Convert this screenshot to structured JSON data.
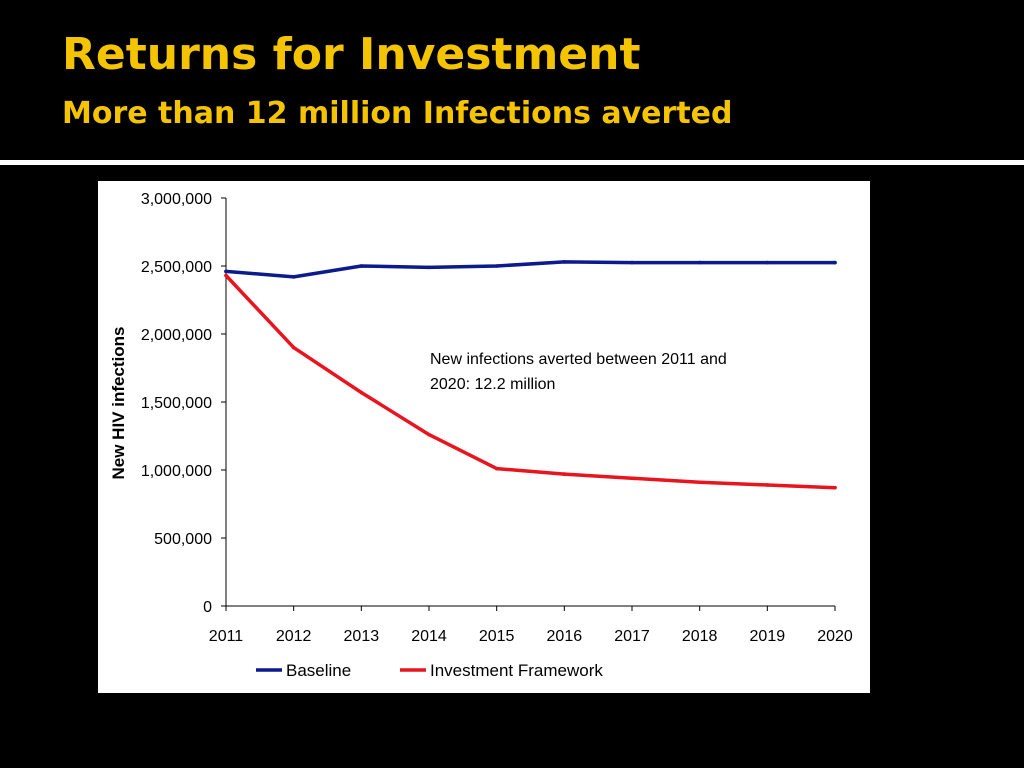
{
  "slide": {
    "title": "Returns for Investment",
    "subtitle": "More than 12 million Infections averted"
  },
  "colors": {
    "title": "#f5c400",
    "background": "#000000",
    "baseline": "#0b1a8c",
    "investment": "#e8141e"
  },
  "chart_data": {
    "type": "line",
    "x": [
      2011,
      2012,
      2013,
      2014,
      2015,
      2016,
      2017,
      2018,
      2019,
      2020
    ],
    "xlabel": "",
    "ylabel": "New HIV infections",
    "ylim": [
      0,
      3000000
    ],
    "yticks": [
      0,
      500000,
      1000000,
      1500000,
      2000000,
      2500000,
      3000000
    ],
    "ytick_labels": [
      "0",
      "500,000",
      "1,000,000",
      "1,500,000",
      "2,000,000",
      "2,500,000",
      "3,000,000"
    ],
    "xtick_labels": [
      "2011",
      "2012",
      "2013",
      "2014",
      "2015",
      "2016",
      "2017",
      "2018",
      "2019",
      "2020"
    ],
    "grid": false,
    "legend_position": "bottom",
    "series": [
      {
        "name": "Baseline",
        "color": "#0b1a8c",
        "values": [
          2460000,
          2420000,
          2500000,
          2490000,
          2500000,
          2530000,
          2525000,
          2525000,
          2525000,
          2525000
        ]
      },
      {
        "name": "Investment Framework",
        "color": "#e8141e",
        "values": [
          2430000,
          1900000,
          1570000,
          1260000,
          1010000,
          970000,
          940000,
          910000,
          890000,
          870000
        ]
      }
    ],
    "annotation": {
      "lines": [
        "New infections averted between 2011 and",
        "2020: 12.2 million"
      ]
    }
  }
}
